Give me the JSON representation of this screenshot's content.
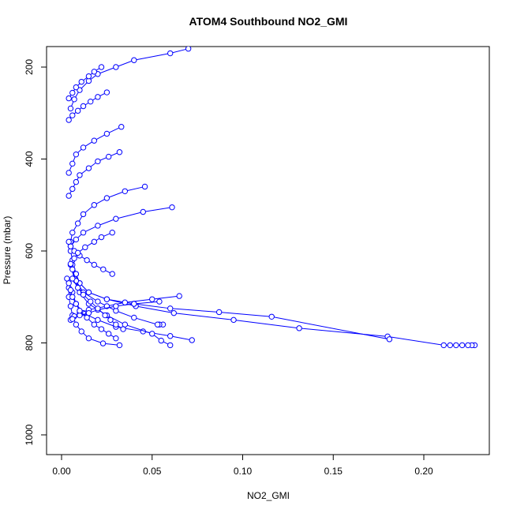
{
  "chart_data": {
    "type": "line",
    "title": "ATOM4 Southbound NO2_GMI",
    "xlabel": "NO2_GMI",
    "ylabel": "Pressure (mbar)",
    "xlim": [
      0,
      0.23
    ],
    "ylim": [
      1040,
      160
    ],
    "y_reversed": true,
    "grid": false,
    "xticks": [
      0.0,
      0.05,
      0.1,
      0.15,
      0.2
    ],
    "xtick_labels": [
      "0.00",
      "0.05",
      "0.10",
      "0.15",
      "0.20"
    ],
    "yticks": [
      200,
      400,
      600,
      800,
      1000
    ],
    "ytick_labels": [
      "200",
      "400",
      "600",
      "800",
      "1000"
    ],
    "series_color": "#0000ff",
    "marker": "open-circle",
    "series": [
      {
        "x": [
          0.032,
          0.0229,
          0.015,
          0.011,
          0.008,
          0.006,
          0.005,
          0.004,
          0.004,
          0.003
        ],
        "y": [
          805,
          801,
          790,
          775,
          760,
          740,
          720,
          700,
          680,
          660
        ]
      },
      {
        "x": [
          0.2281,
          0.2265,
          0.2244,
          0.2212,
          0.2178,
          0.2145,
          0.211,
          0.18,
          0.1312,
          0.095,
          0.062,
          0.041,
          0.025,
          0.015,
          0.01,
          0.008,
          0.006,
          0.005
        ],
        "y": [
          805,
          805,
          805,
          805,
          805,
          805,
          805,
          786,
          768,
          750,
          735,
          720,
          705,
          690,
          670,
          650,
          620,
          600
        ]
      },
      {
        "x": [
          0.181,
          0.116,
          0.087,
          0.06,
          0.04,
          0.025,
          0.015,
          0.01,
          0.008,
          0.006
        ],
        "y": [
          792,
          743,
          733,
          725,
          715,
          705,
          690,
          670,
          650,
          630
        ]
      },
      {
        "x": [
          0.072,
          0.06,
          0.045,
          0.03,
          0.02,
          0.012,
          0.008,
          0.006
        ],
        "y": [
          794,
          785,
          775,
          765,
          750,
          735,
          715,
          690
        ]
      },
      {
        "x": [
          0.06,
          0.055,
          0.05,
          0.035,
          0.025,
          0.015,
          0.01,
          0.007,
          0.005
        ],
        "y": [
          805,
          795,
          780,
          760,
          740,
          715,
          690,
          660,
          630
        ]
      },
      {
        "x": [
          0.056,
          0.054,
          0.053,
          0.04,
          0.03,
          0.02,
          0.012,
          0.008,
          0.006
        ],
        "y": [
          760,
          760,
          760,
          745,
          730,
          710,
          690,
          665,
          640
        ]
      },
      {
        "x": [
          0.046,
          0.035,
          0.025,
          0.018,
          0.012,
          0.009,
          0.006,
          0.005
        ],
        "y": [
          460,
          470,
          485,
          500,
          520,
          540,
          560,
          580
        ]
      },
      {
        "x": [
          0.061,
          0.045,
          0.03,
          0.02,
          0.012,
          0.008,
          0.005
        ],
        "y": [
          505,
          515,
          530,
          545,
          560,
          575,
          590
        ]
      },
      {
        "x": [
          0.033,
          0.025,
          0.018,
          0.012,
          0.008,
          0.006,
          0.004
        ],
        "y": [
          330,
          345,
          360,
          375,
          390,
          410,
          430
        ]
      },
      {
        "x": [
          0.07,
          0.06,
          0.04,
          0.03,
          0.02,
          0.015,
          0.01,
          0.007,
          0.005
        ],
        "y": [
          160,
          170,
          185,
          200,
          215,
          230,
          250,
          270,
          290
        ]
      },
      {
        "x": [
          0.065,
          0.05,
          0.035,
          0.025,
          0.015,
          0.01,
          0.007,
          0.005
        ],
        "y": [
          698,
          705,
          712,
          720,
          728,
          735,
          742,
          750
        ]
      },
      {
        "x": [
          0.054,
          0.04,
          0.03,
          0.02,
          0.015,
          0.01,
          0.006
        ],
        "y": [
          710,
          715,
          720,
          728,
          735,
          740,
          748
        ]
      },
      {
        "x": [
          0.03,
          0.026,
          0.022,
          0.018,
          0.014,
          0.01,
          0.008,
          0.006,
          0.005,
          0.004
        ],
        "y": [
          790,
          780,
          770,
          760,
          745,
          730,
          715,
          700,
          685,
          670
        ]
      },
      {
        "x": [
          0.034,
          0.03,
          0.027,
          0.024,
          0.02,
          0.016,
          0.012,
          0.009,
          0.006
        ],
        "y": [
          770,
          760,
          750,
          740,
          725,
          710,
          695,
          680,
          660
        ]
      },
      {
        "x": [
          0.028,
          0.023,
          0.018,
          0.014,
          0.01,
          0.007,
          0.005,
          0.004
        ],
        "y": [
          650,
          640,
          630,
          620,
          610,
          600,
          590,
          580
        ]
      },
      {
        "x": [
          0.032,
          0.026,
          0.02,
          0.015,
          0.01,
          0.008,
          0.006,
          0.004
        ],
        "y": [
          385,
          395,
          405,
          420,
          435,
          450,
          465,
          480
        ]
      },
      {
        "x": [
          0.028,
          0.022,
          0.018,
          0.013,
          0.009,
          0.007,
          0.005
        ],
        "y": [
          560,
          570,
          580,
          592,
          604,
          616,
          628
        ]
      },
      {
        "x": [
          0.025,
          0.02,
          0.016,
          0.012,
          0.009,
          0.006,
          0.004
        ],
        "y": [
          255,
          265,
          275,
          285,
          295,
          305,
          315
        ]
      },
      {
        "x": [
          0.022,
          0.018,
          0.015,
          0.011,
          0.008,
          0.006,
          0.004
        ],
        "y": [
          200,
          210,
          220,
          232,
          244,
          256,
          268
        ]
      }
    ]
  }
}
